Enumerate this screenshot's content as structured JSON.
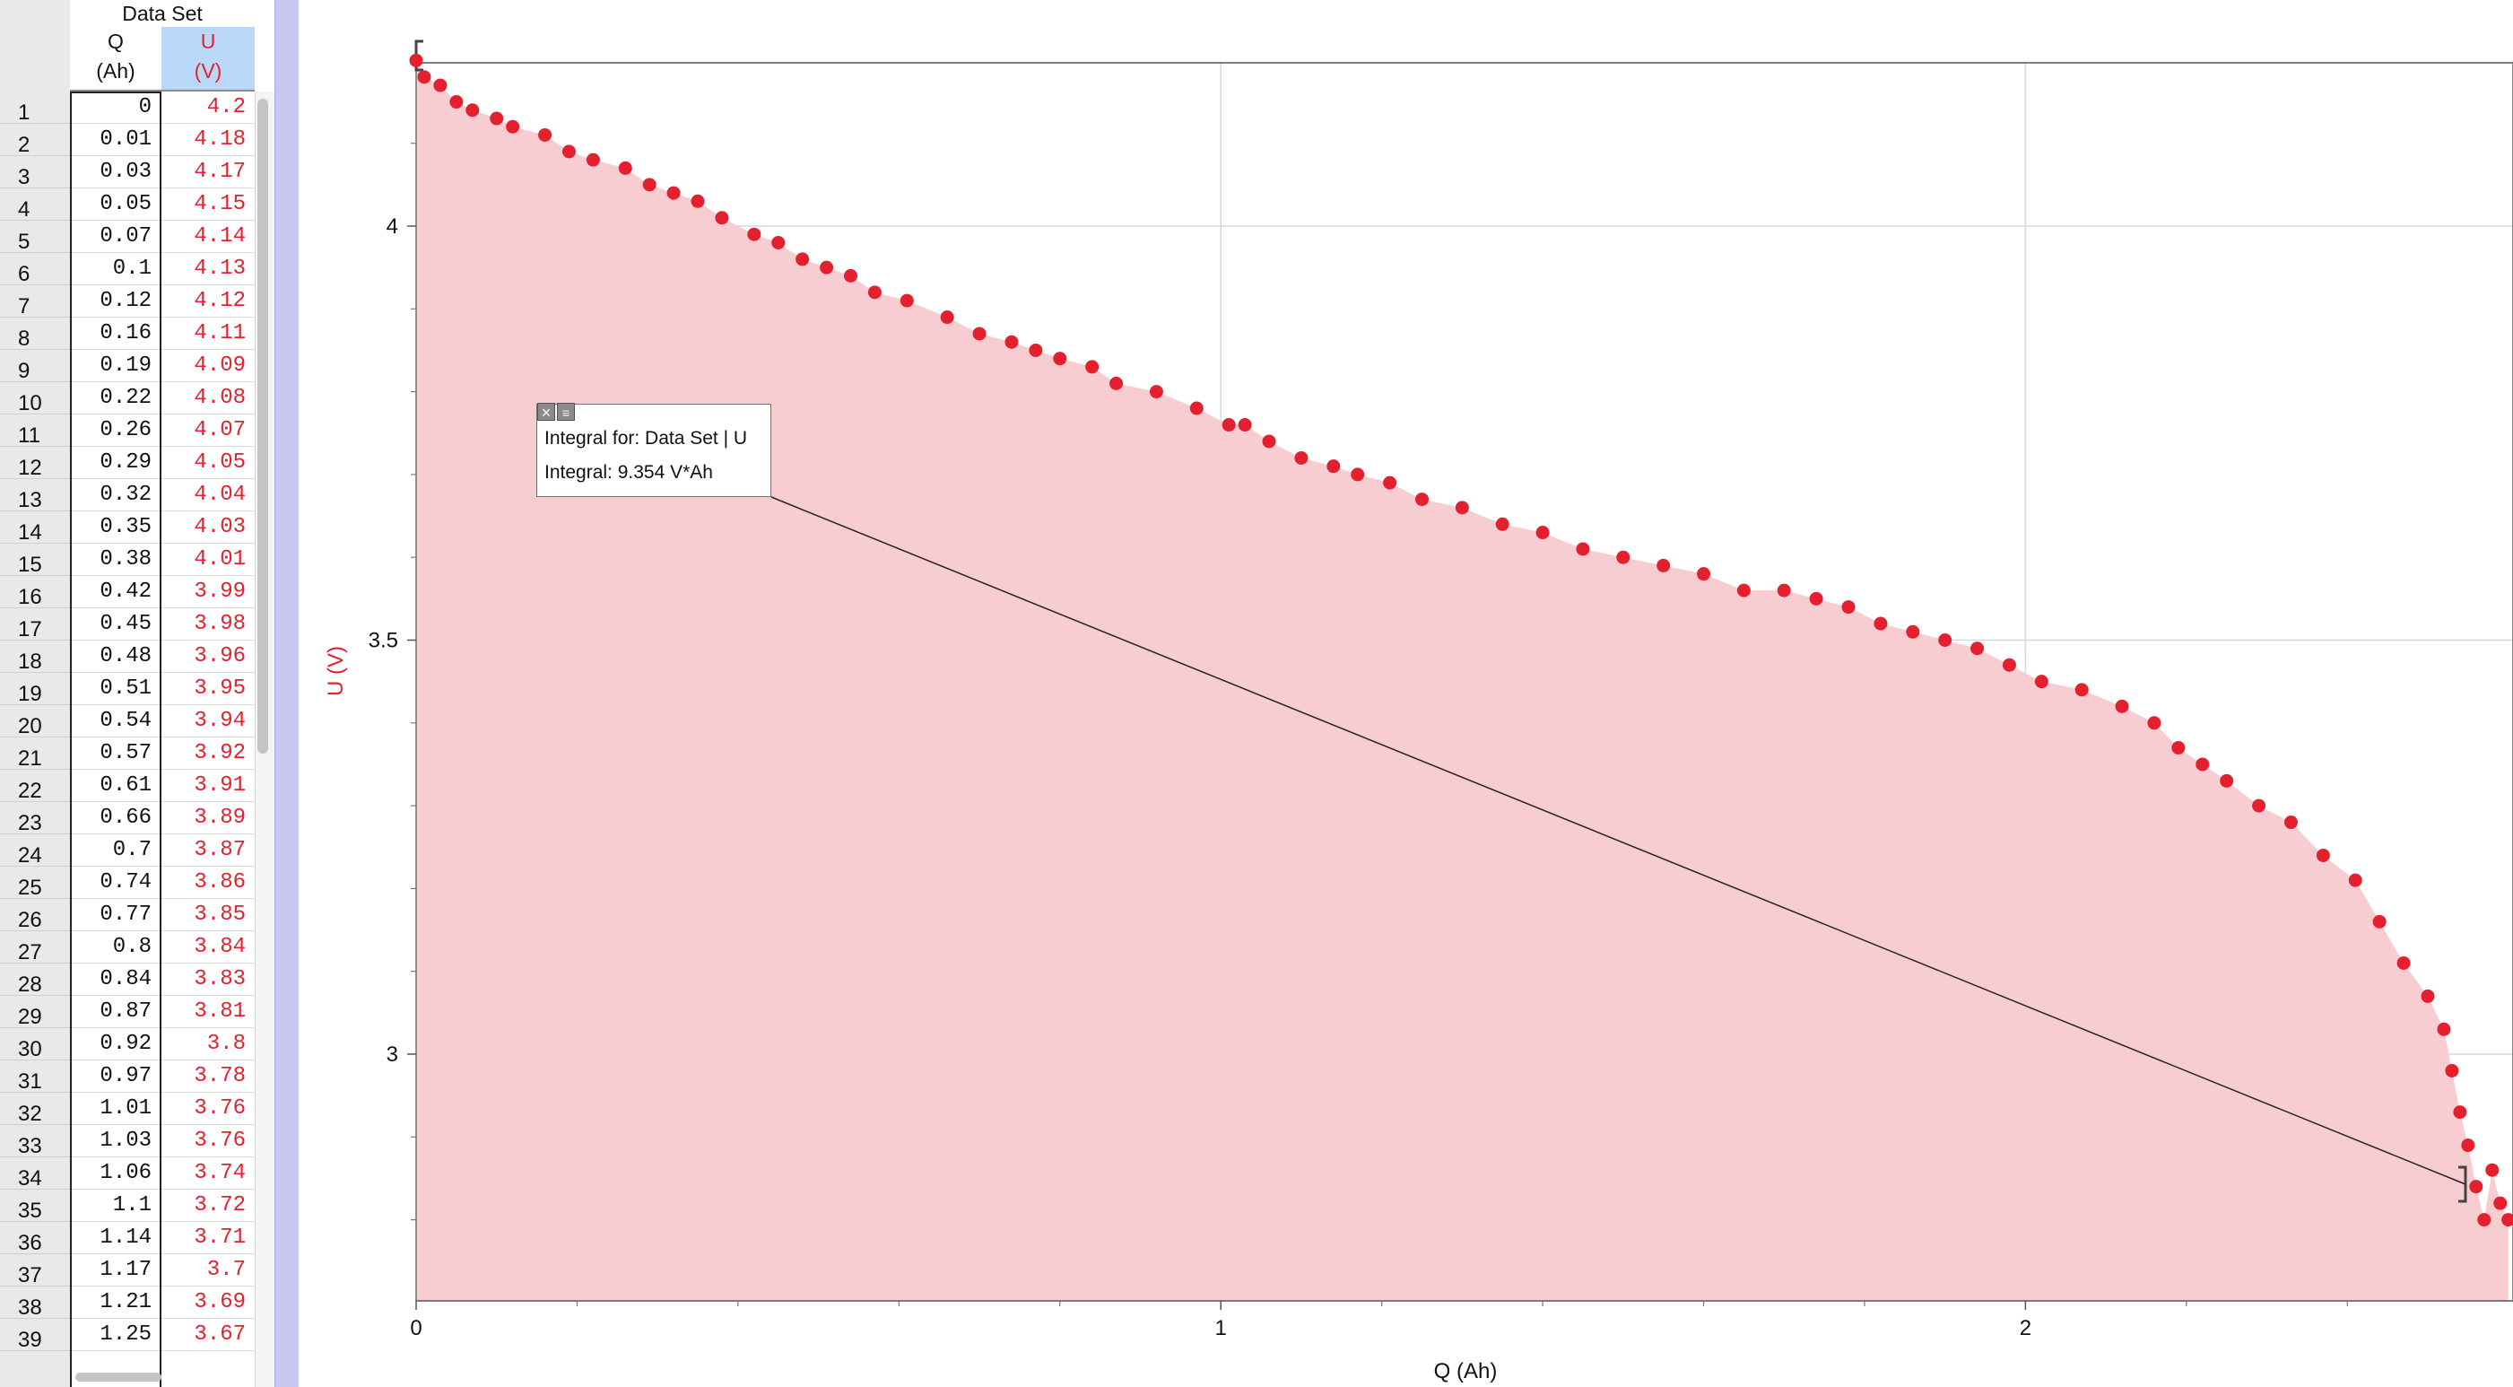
{
  "table": {
    "group_header": "Data Set",
    "col_q_name": "Q",
    "col_q_unit": "(Ah)",
    "col_u_name": "U",
    "col_u_unit": "(V)",
    "rows": [
      {
        "n": "1",
        "q": "0",
        "u": "4.2"
      },
      {
        "n": "2",
        "q": "0.01",
        "u": "4.18"
      },
      {
        "n": "3",
        "q": "0.03",
        "u": "4.17"
      },
      {
        "n": "4",
        "q": "0.05",
        "u": "4.15"
      },
      {
        "n": "5",
        "q": "0.07",
        "u": "4.14"
      },
      {
        "n": "6",
        "q": "0.1",
        "u": "4.13"
      },
      {
        "n": "7",
        "q": "0.12",
        "u": "4.12"
      },
      {
        "n": "8",
        "q": "0.16",
        "u": "4.11"
      },
      {
        "n": "9",
        "q": "0.19",
        "u": "4.09"
      },
      {
        "n": "10",
        "q": "0.22",
        "u": "4.08"
      },
      {
        "n": "11",
        "q": "0.26",
        "u": "4.07"
      },
      {
        "n": "12",
        "q": "0.29",
        "u": "4.05"
      },
      {
        "n": "13",
        "q": "0.32",
        "u": "4.04"
      },
      {
        "n": "14",
        "q": "0.35",
        "u": "4.03"
      },
      {
        "n": "15",
        "q": "0.38",
        "u": "4.01"
      },
      {
        "n": "16",
        "q": "0.42",
        "u": "3.99"
      },
      {
        "n": "17",
        "q": "0.45",
        "u": "3.98"
      },
      {
        "n": "18",
        "q": "0.48",
        "u": "3.96"
      },
      {
        "n": "19",
        "q": "0.51",
        "u": "3.95"
      },
      {
        "n": "20",
        "q": "0.54",
        "u": "3.94"
      },
      {
        "n": "21",
        "q": "0.57",
        "u": "3.92"
      },
      {
        "n": "22",
        "q": "0.61",
        "u": "3.91"
      },
      {
        "n": "23",
        "q": "0.66",
        "u": "3.89"
      },
      {
        "n": "24",
        "q": "0.7",
        "u": "3.87"
      },
      {
        "n": "25",
        "q": "0.74",
        "u": "3.86"
      },
      {
        "n": "26",
        "q": "0.77",
        "u": "3.85"
      },
      {
        "n": "27",
        "q": "0.8",
        "u": "3.84"
      },
      {
        "n": "28",
        "q": "0.84",
        "u": "3.83"
      },
      {
        "n": "29",
        "q": "0.87",
        "u": "3.81"
      },
      {
        "n": "30",
        "q": "0.92",
        "u": "3.8"
      },
      {
        "n": "31",
        "q": "0.97",
        "u": "3.78"
      },
      {
        "n": "32",
        "q": "1.01",
        "u": "3.76"
      },
      {
        "n": "33",
        "q": "1.03",
        "u": "3.76"
      },
      {
        "n": "34",
        "q": "1.06",
        "u": "3.74"
      },
      {
        "n": "35",
        "q": "1.1",
        "u": "3.72"
      },
      {
        "n": "36",
        "q": "1.14",
        "u": "3.71"
      },
      {
        "n": "37",
        "q": "1.17",
        "u": "3.7"
      },
      {
        "n": "38",
        "q": "1.21",
        "u": "3.69"
      },
      {
        "n": "39",
        "q": "1.25",
        "u": "3.67"
      }
    ]
  },
  "colors": {
    "accent": "#e4202e",
    "fill": "#f8cdd1",
    "selected_header": "#b9d8f8",
    "splitter": "#c6c8f0"
  },
  "chart_data": {
    "type": "scatter",
    "fill_under_curve": true,
    "xlabel": "Q (Ah)",
    "ylabel": "U (V)",
    "xlim": [
      0,
      2.6
    ],
    "ylim": [
      2.7,
      4.2
    ],
    "x_ticks": [
      0,
      1,
      2
    ],
    "y_ticks": [
      3,
      3.5,
      4
    ],
    "grid": true,
    "series": [
      {
        "x": [
          0,
          0.01,
          0.03,
          0.05,
          0.07,
          0.1,
          0.12,
          0.16,
          0.19,
          0.22,
          0.26,
          0.29,
          0.32,
          0.35,
          0.38,
          0.42,
          0.45,
          0.48,
          0.51,
          0.54,
          0.57,
          0.61,
          0.66,
          0.7,
          0.74,
          0.77,
          0.8,
          0.84,
          0.87,
          0.92,
          0.97,
          1.01,
          1.03,
          1.06,
          1.1,
          1.14,
          1.17,
          1.21,
          1.25,
          1.3,
          1.35,
          1.4,
          1.45,
          1.5,
          1.55,
          1.6,
          1.65,
          1.7,
          1.74,
          1.78,
          1.82,
          1.86,
          1.9,
          1.94,
          1.98,
          2.02,
          2.07,
          2.12,
          2.16,
          2.19,
          2.22,
          2.25,
          2.29,
          2.33,
          2.37,
          2.41,
          2.44,
          2.47,
          2.5,
          2.52,
          2.53,
          2.54,
          2.55,
          2.56,
          2.57,
          2.58,
          2.59,
          2.6
        ],
        "y": [
          4.2,
          4.18,
          4.17,
          4.15,
          4.14,
          4.13,
          4.12,
          4.11,
          4.09,
          4.08,
          4.07,
          4.05,
          4.04,
          4.03,
          4.01,
          3.99,
          3.98,
          3.96,
          3.95,
          3.94,
          3.92,
          3.91,
          3.89,
          3.87,
          3.86,
          3.85,
          3.84,
          3.83,
          3.81,
          3.8,
          3.78,
          3.76,
          3.76,
          3.74,
          3.72,
          3.71,
          3.7,
          3.69,
          3.67,
          3.66,
          3.64,
          3.63,
          3.61,
          3.6,
          3.59,
          3.58,
          3.56,
          3.56,
          3.55,
          3.54,
          3.52,
          3.51,
          3.5,
          3.49,
          3.47,
          3.45,
          3.44,
          3.42,
          3.4,
          3.37,
          3.35,
          3.33,
          3.3,
          3.28,
          3.24,
          3.21,
          3.16,
          3.11,
          3.07,
          3.03,
          2.98,
          2.93,
          2.89,
          2.84,
          2.8,
          2.86,
          2.82,
          2.8
        ]
      }
    ],
    "integral_range_x": [
      0,
      2.58
    ],
    "annotation": {
      "line1": "Integral for: Data Set | U",
      "line2": "Integral: 9.354 V*Ah"
    }
  }
}
